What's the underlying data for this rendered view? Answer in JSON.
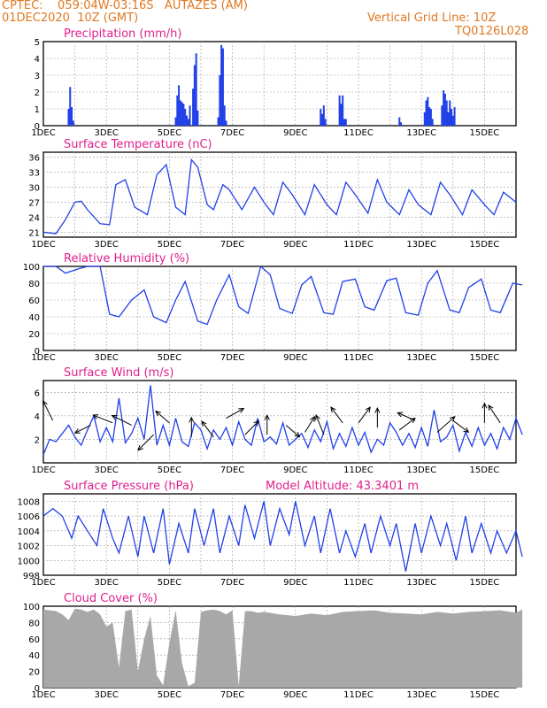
{
  "header": {
    "left_line1": "CPTEC:    059:04W-03:16S   AUTAZES (AM)",
    "left_line2": "01DEC2020  10Z (GMT)",
    "right_line1": "Vertical Grid Line: 10Z",
    "right_line2": "TQ0126L028"
  },
  "colors": {
    "header": "#e07820",
    "title": "#e0208c",
    "series": "#2040e8",
    "cloud": "#a8a8a8"
  },
  "x_tick_labels": [
    "1DEC",
    "3DEC",
    "5DEC",
    "7DEC",
    "9DEC",
    "11DEC",
    "13DEC",
    "15DEC"
  ],
  "panels": [
    {
      "id": "precip",
      "title": "Precipitation  (mm/h)",
      "ylim": [
        0,
        5
      ],
      "yticks": [
        0,
        1,
        2,
        3,
        4,
        5
      ]
    },
    {
      "id": "temp",
      "title": "Surface Temperature  (nC)",
      "ylim": [
        20,
        37
      ],
      "yticks": [
        21,
        24,
        27,
        30,
        33,
        36
      ]
    },
    {
      "id": "rh",
      "title": "Relative Humidity  (%)",
      "ylim": [
        0,
        100
      ],
      "yticks": [
        0,
        20,
        40,
        60,
        80,
        100
      ]
    },
    {
      "id": "wind",
      "title": "Surface Wind  (m/s)",
      "ylim": [
        0,
        7
      ],
      "yticks": [
        2,
        4,
        6
      ]
    },
    {
      "id": "pres",
      "title": "Surface Pressure  (hPa)",
      "extra": "Model Altitude: 43.3401  m",
      "ylim": [
        998,
        1009
      ],
      "yticks": [
        998,
        1000,
        1002,
        1004,
        1006,
        1008
      ]
    },
    {
      "id": "cloud",
      "title": "Cloud Cover  (%)",
      "ylim": [
        0,
        100
      ],
      "yticks": [
        0,
        20,
        40,
        60,
        80,
        100
      ]
    }
  ],
  "chart_data": [
    {
      "type": "bar",
      "title": "Precipitation  (mm/h)",
      "x_unit": "days since 01DEC2020 10Z",
      "ylim": [
        0,
        5
      ],
      "x": [
        0.8,
        0.85,
        0.9,
        0.95,
        4.2,
        4.25,
        4.3,
        4.35,
        4.4,
        4.45,
        4.5,
        4.55,
        4.6,
        4.65,
        4.75,
        4.8,
        4.85,
        4.9,
        5.55,
        5.6,
        5.65,
        5.7,
        5.75,
        5.8,
        8.8,
        8.85,
        8.9,
        8.95,
        9.4,
        9.45,
        9.5,
        9.55,
        9.6,
        11.3,
        11.35,
        12.1,
        12.15,
        12.2,
        12.25,
        12.3,
        12.35,
        12.65,
        12.7,
        12.75,
        12.8,
        12.85,
        12.9,
        12.95,
        13.0,
        13.05
      ],
      "values": [
        1.0,
        2.3,
        1.1,
        0.3,
        0.5,
        1.8,
        2.4,
        1.5,
        1.4,
        1.3,
        1.0,
        0.6,
        0.4,
        1.2,
        2.2,
        3.6,
        4.3,
        0.9,
        0.5,
        3.0,
        4.8,
        4.6,
        1.2,
        0.3,
        1.0,
        0.7,
        1.2,
        0.4,
        1.8,
        1.3,
        1.8,
        0.4,
        0.4,
        0.5,
        0.2,
        0.8,
        1.5,
        1.7,
        1.1,
        1.0,
        0.4,
        1.2,
        2.1,
        1.9,
        1.5,
        0.8,
        1.5,
        1.0,
        0.6,
        1.1
      ]
    },
    {
      "type": "line",
      "title": "Surface Temperature  (nC)",
      "x_unit": "days since 01DEC2020 10Z",
      "ylim": [
        20,
        37
      ],
      "x": [
        0,
        0.4,
        0.7,
        1.0,
        1.2,
        1.4,
        1.8,
        2.1,
        2.3,
        2.6,
        2.9,
        3.3,
        3.6,
        3.9,
        4.2,
        4.5,
        4.7,
        4.9,
        5.2,
        5.4,
        5.7,
        5.9,
        6.3,
        6.7,
        7.0,
        7.3,
        7.6,
        7.9,
        8.3,
        8.6,
        9.0,
        9.3,
        9.6,
        9.9,
        10.3,
        10.6,
        10.9,
        11.3,
        11.6,
        11.9,
        12.3,
        12.6,
        12.9,
        13.3,
        13.6,
        14.0,
        14.3,
        14.6,
        15.0
      ],
      "values": [
        21,
        20.7,
        23.5,
        27,
        27.2,
        25.5,
        22.7,
        22.5,
        30.5,
        31.5,
        26,
        24.5,
        32.5,
        34.5,
        26,
        24.5,
        35.5,
        34,
        26.5,
        25.5,
        30.5,
        29.5,
        25.5,
        30,
        27,
        24.5,
        31,
        28.5,
        24.5,
        30.5,
        26.5,
        24.5,
        31,
        28.5,
        24.8,
        31.5,
        27,
        24.5,
        29.5,
        26.5,
        24.5,
        31,
        28.5,
        24.5,
        29.5,
        26.5,
        24.5,
        29,
        27
      ]
    },
    {
      "type": "line",
      "title": "Relative Humidity  (%)",
      "x_unit": "days since 01DEC2020 10Z",
      "ylim": [
        0,
        100
      ],
      "x": [
        0,
        0.4,
        0.7,
        1.1,
        1.4,
        1.8,
        2.1,
        2.4,
        2.8,
        3.2,
        3.5,
        3.9,
        4.2,
        4.5,
        4.9,
        5.2,
        5.5,
        5.9,
        6.2,
        6.5,
        6.9,
        7.2,
        7.5,
        7.9,
        8.2,
        8.5,
        8.9,
        9.2,
        9.5,
        9.9,
        10.2,
        10.5,
        10.9,
        11.2,
        11.5,
        11.9,
        12.2,
        12.5,
        12.9,
        13.2,
        13.5,
        13.9,
        14.2,
        14.5,
        14.9,
        15.2
      ],
      "values": [
        100,
        100,
        92,
        97,
        100,
        100,
        43,
        40,
        60,
        72,
        40,
        33,
        60,
        82,
        35,
        31,
        60,
        90,
        52,
        44,
        100,
        90,
        50,
        44,
        78,
        88,
        45,
        43,
        82,
        85,
        52,
        48,
        83,
        86,
        45,
        42,
        80,
        95,
        48,
        45,
        75,
        85,
        48,
        45,
        80,
        78
      ]
    },
    {
      "type": "line",
      "title": "Surface Wind  (m/s)",
      "x_unit": "days since 01DEC2020 10Z",
      "ylim": [
        0,
        7
      ],
      "x": [
        0,
        0.2,
        0.4,
        0.6,
        0.8,
        1.0,
        1.2,
        1.4,
        1.6,
        1.8,
        2.0,
        2.2,
        2.4,
        2.6,
        2.8,
        3.0,
        3.2,
        3.4,
        3.6,
        3.8,
        4.0,
        4.2,
        4.4,
        4.6,
        4.8,
        5.0,
        5.2,
        5.4,
        5.6,
        5.8,
        6.0,
        6.2,
        6.4,
        6.6,
        6.8,
        7.0,
        7.2,
        7.4,
        7.6,
        7.8,
        8.0,
        8.2,
        8.4,
        8.6,
        8.8,
        9.0,
        9.2,
        9.4,
        9.6,
        9.8,
        10.0,
        10.2,
        10.4,
        10.6,
        10.8,
        11.0,
        11.2,
        11.4,
        11.6,
        11.8,
        12.0,
        12.2,
        12.4,
        12.6,
        12.8,
        13.0,
        13.2,
        13.4,
        13.6,
        13.8,
        14.0,
        14.2,
        14.4,
        14.6,
        14.8,
        15.0,
        15.2
      ],
      "values": [
        0.7,
        2.0,
        1.8,
        2.5,
        3.2,
        2.2,
        1.5,
        2.8,
        4.0,
        1.8,
        3.0,
        1.8,
        5.5,
        1.7,
        2.5,
        3.8,
        2.0,
        6.6,
        1.5,
        3.2,
        1.5,
        3.8,
        1.8,
        1.4,
        3.4,
        2.8,
        1.2,
        2.8,
        2.0,
        3.0,
        1.5,
        3.5,
        2.0,
        1.5,
        3.8,
        1.8,
        2.2,
        1.6,
        3.4,
        1.5,
        2.0,
        2.5,
        1.3,
        2.8,
        1.8,
        3.5,
        1.2,
        2.5,
        1.4,
        3.0,
        1.5,
        2.6,
        0.9,
        2.0,
        1.5,
        3.4,
        2.6,
        1.5,
        2.5,
        1.3,
        3.0,
        1.4,
        4.5,
        1.8,
        2.2,
        3.2,
        1.0,
        2.6,
        1.4,
        3.0,
        1.5,
        2.5,
        1.2,
        3.0,
        2.0,
        3.8,
        2.4
      ]
    },
    {
      "type": "line",
      "title": "Surface Pressure  (hPa)",
      "x_unit": "days since 01DEC2020 10Z",
      "ylim": [
        998,
        1009
      ],
      "x": [
        0,
        0.3,
        0.6,
        0.9,
        1.1,
        1.4,
        1.7,
        1.9,
        2.2,
        2.4,
        2.7,
        3.0,
        3.2,
        3.5,
        3.8,
        4.0,
        4.3,
        4.6,
        4.8,
        5.1,
        5.4,
        5.6,
        5.9,
        6.2,
        6.4,
        6.7,
        7.0,
        7.2,
        7.5,
        7.8,
        8.0,
        8.3,
        8.6,
        8.8,
        9.1,
        9.4,
        9.6,
        9.9,
        10.2,
        10.4,
        10.7,
        11.0,
        11.2,
        11.5,
        11.8,
        12.0,
        12.3,
        12.6,
        12.8,
        13.1,
        13.4,
        13.6,
        13.9,
        14.2,
        14.4,
        14.7,
        15.0,
        15.2
      ],
      "values": [
        1006,
        1007,
        1006,
        1003,
        1006,
        1004,
        1002,
        1007,
        1003,
        1001,
        1006,
        1000.5,
        1006,
        1001,
        1007,
        999.5,
        1005,
        1001,
        1007,
        1002,
        1007,
        1001,
        1006,
        1002,
        1007.5,
        1003,
        1008,
        1002,
        1007,
        1003.5,
        1008,
        1002,
        1006,
        1001,
        1007,
        1001,
        1004,
        1000.5,
        1005,
        1001,
        1006,
        1002,
        1005,
        998.5,
        1005,
        1001,
        1006,
        1002,
        1005,
        1000,
        1006,
        1001,
        1005,
        1001,
        1004,
        1001,
        1004,
        1000.5
      ]
    },
    {
      "type": "area",
      "title": "Cloud Cover  (%)",
      "x_unit": "days since 01DEC2020 10Z",
      "ylim": [
        0,
        100
      ],
      "x": [
        0,
        0.2,
        0.4,
        0.6,
        0.8,
        1.0,
        1.2,
        1.4,
        1.6,
        1.8,
        2.0,
        2.2,
        2.4,
        2.6,
        2.8,
        3.0,
        3.2,
        3.4,
        3.6,
        3.8,
        4.0,
        4.2,
        4.4,
        4.6,
        4.8,
        5.0,
        5.2,
        5.4,
        5.6,
        5.8,
        6.0,
        6.2,
        6.4,
        6.6,
        6.8,
        7.0,
        7.5,
        8.0,
        8.5,
        9.0,
        9.5,
        10.0,
        10.5,
        11.0,
        11.5,
        12.0,
        12.5,
        13.0,
        13.5,
        14.0,
        14.5,
        15.0,
        15.2
      ],
      "values": [
        96,
        95,
        94,
        90,
        83,
        97,
        96,
        93,
        96,
        90,
        75,
        80,
        25,
        94,
        96,
        20,
        60,
        88,
        15,
        3,
        55,
        95,
        30,
        2,
        6,
        93,
        95,
        96,
        94,
        90,
        95,
        2,
        94,
        94,
        92,
        93,
        90,
        88,
        91,
        89,
        93,
        94,
        95,
        92,
        91,
        90,
        93,
        91,
        93,
        94,
        95,
        92,
        96
      ]
    }
  ]
}
